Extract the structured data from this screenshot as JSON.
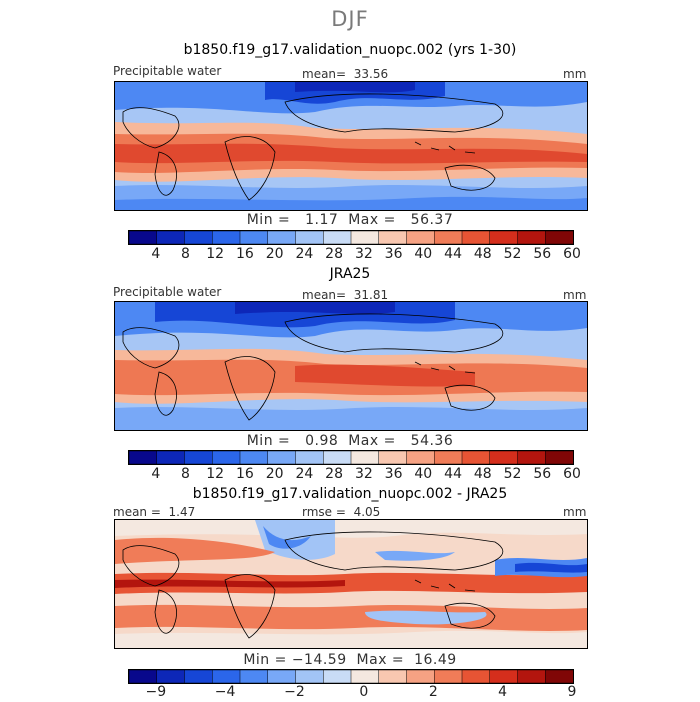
{
  "title": "DJF",
  "panels": [
    {
      "title": "b1850.f19_g17.validation_nuopc.002 (yrs 1-30)",
      "variable": "Precipitable water",
      "mean_label": "mean=",
      "mean_value": "33.56",
      "units": "mm",
      "min_label": "Min =",
      "min_value": "1.17",
      "max_label": "Max =",
      "max_value": "56.37"
    },
    {
      "title": "JRA25",
      "variable": "Precipitable water",
      "mean_label": "mean=",
      "mean_value": "31.81",
      "units": "mm",
      "min_label": "Min =",
      "min_value": "0.98",
      "max_label": "Max =",
      "max_value": "54.36"
    },
    {
      "title": "b1850.f19_g17.validation_nuopc.002 - JRA25",
      "mean_label": "mean =",
      "mean_value": "1.47",
      "rmse_label": "rmse =",
      "rmse_value": "4.05",
      "units": "mm",
      "min_label": "Min =",
      "min_value": "−14.59",
      "max_label": "Max =",
      "max_value": "16.49"
    }
  ],
  "colorbar_abs": {
    "ticks": [
      "4",
      "8",
      "12",
      "16",
      "20",
      "24",
      "28",
      "32",
      "36",
      "40",
      "44",
      "48",
      "52",
      "56",
      "60"
    ],
    "colors": [
      "#08088c",
      "#0d27b8",
      "#1646d6",
      "#2b66ea",
      "#4d88f3",
      "#78a8f7",
      "#a2c4f6",
      "#c9dcf6",
      "#f4e8e0",
      "#f8c7b0",
      "#f6a283",
      "#f07c58",
      "#e75434",
      "#d52e1c",
      "#b3150e",
      "#800606"
    ]
  },
  "colorbar_diff": {
    "ticks": [
      "−9",
      "−4",
      "−2",
      "0",
      "2",
      "4",
      "9"
    ],
    "colors": [
      "#08088c",
      "#0d27b8",
      "#1646d6",
      "#2b66ea",
      "#4d88f3",
      "#78a8f7",
      "#a2c4f6",
      "#c9dcf6",
      "#f4e8e0",
      "#f8c7b0",
      "#f6a283",
      "#f07c58",
      "#e75434",
      "#d52e1c",
      "#b3150e",
      "#800606"
    ]
  },
  "chart_data": {
    "type": "heatmap",
    "title": "DJF",
    "subtitle": "Precipitable water (mm)",
    "panels": [
      {
        "name": "b1850.f19_g17.validation_nuopc.002 (yrs 1-30)",
        "mean": 33.56,
        "min": 1.17,
        "max": 56.37,
        "units": "mm"
      },
      {
        "name": "JRA25",
        "mean": 31.81,
        "min": 0.98,
        "max": 54.36,
        "units": "mm"
      },
      {
        "name": "b1850.f19_g17.validation_nuopc.002 - JRA25",
        "mean": 1.47,
        "rmse": 4.05,
        "min": -14.59,
        "max": 16.49,
        "units": "mm"
      }
    ],
    "colorbar_levels": [
      4,
      8,
      12,
      16,
      20,
      24,
      28,
      32,
      36,
      40,
      44,
      48,
      52,
      56,
      60
    ],
    "diff_colorbar_levels": [
      -9,
      -4,
      -2,
      0,
      2,
      4,
      9
    ]
  }
}
